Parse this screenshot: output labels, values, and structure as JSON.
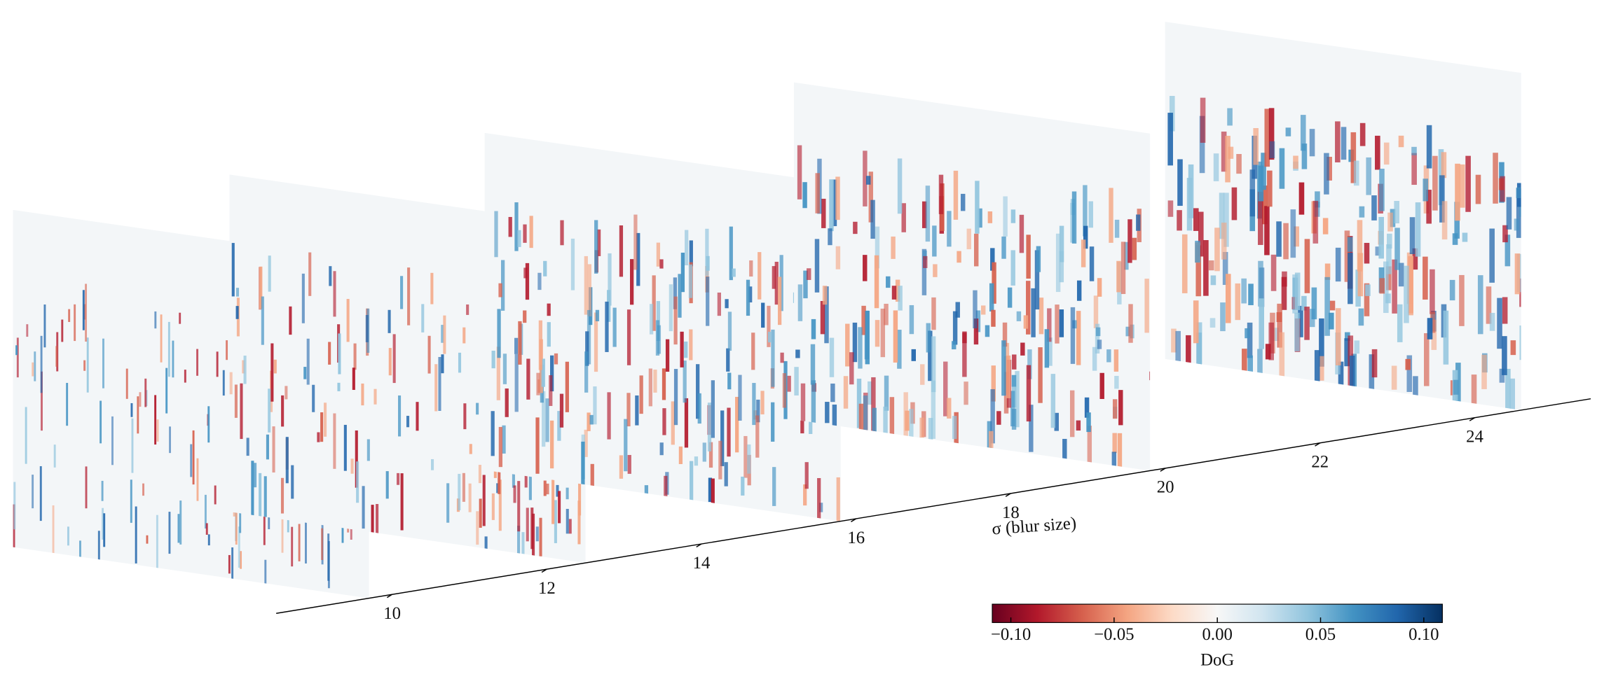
{
  "chart_data": {
    "type": "stacked-slices",
    "xlabel": "σ (blur size)",
    "xlim": [
      8.5,
      25.5
    ],
    "xticks": [
      10,
      12,
      14,
      16,
      18,
      20,
      22,
      24
    ],
    "slices": [
      9.7,
      12.5,
      15.8,
      19.8,
      24.6
    ],
    "colorbar": {
      "label": "DoG",
      "clim": [
        -0.109,
        0.109
      ],
      "ticks": [
        {
          "value": -0.1,
          "label": "−0.10"
        },
        {
          "value": -0.05,
          "label": "−0.05"
        },
        {
          "value": 0,
          "label": "0.00"
        },
        {
          "value": 0.05,
          "label": "0.05"
        },
        {
          "value": 0.1,
          "label": "0.10"
        }
      ],
      "colors": [
        "#67001f",
        "#b2182b",
        "#d6604d",
        "#f4a582",
        "#fddbc7",
        "#f7f7f7",
        "#d1e5f0",
        "#92c5de",
        "#4393c3",
        "#2166ac",
        "#053061"
      ]
    }
  }
}
